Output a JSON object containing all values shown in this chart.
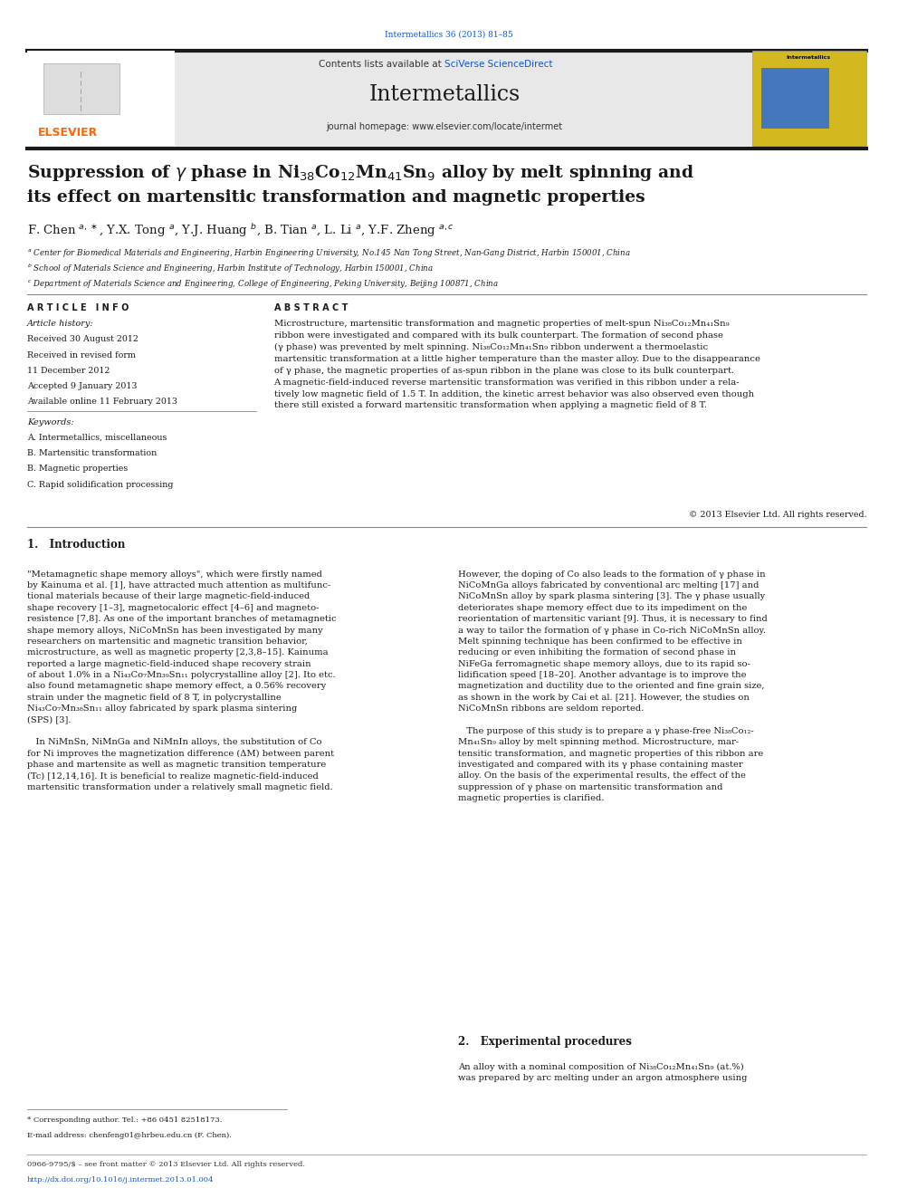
{
  "page_width": 9.92,
  "page_height": 13.23,
  "bg_color": "#ffffff",
  "top_journal_ref": "Intermetallics 36 (2013) 81–85",
  "top_journal_ref_color": "#1155cc",
  "journal_name": "Intermetallics",
  "contents_text": "Contents lists available at ",
  "sciverse_text": "SciVerse ScienceDirect",
  "homepage_text": "journal homepage: www.elsevier.com/locate/intermet",
  "article_info_header": "A R T I C L E   I N F O",
  "article_history_header": "Article history:",
  "received1": "Received 30 August 2012",
  "received2": "Received in revised form",
  "received2b": "11 December 2012",
  "accepted": "Accepted 9 January 2013",
  "available": "Available online 11 February 2013",
  "keywords_header": "Keywords:",
  "kw1": "A. Intermetallics, miscellaneous",
  "kw2": "B. Martensitic transformation",
  "kw3": "B. Magnetic properties",
  "kw4": "C. Rapid solidification processing",
  "abstract_header": "A B S T R A C T",
  "copyright": "© 2013 Elsevier Ltd. All rights reserved.",
  "intro_header": "1.   Introduction",
  "exp_header": "2.   Experimental procedures",
  "exp_text1": "An alloy with a nominal composition of Ni₃₈Co₁₂Mn₄₁Sn₉ (at.%)",
  "exp_text2": "was prepared by arc melting under an argon atmosphere using",
  "footer_note": "* Corresponding author. Tel.: +86 0451 82518173.",
  "footer_email": "E-mail address: chenfeng01@hrbeu.edu.cn (F. Chen).",
  "footer_issn": "0966-9795/$ – see front matter © 2013 Elsevier Ltd. All rights reserved.",
  "footer_doi": "http://dx.doi.org/10.1016/j.intermet.2013.01.004",
  "elsevier_orange": "#FF6600",
  "link_blue": "#1155cc",
  "header_bg": "#e8e8e8",
  "thick_bar_color": "#1a1a1a",
  "text_color": "#1a1a1a"
}
